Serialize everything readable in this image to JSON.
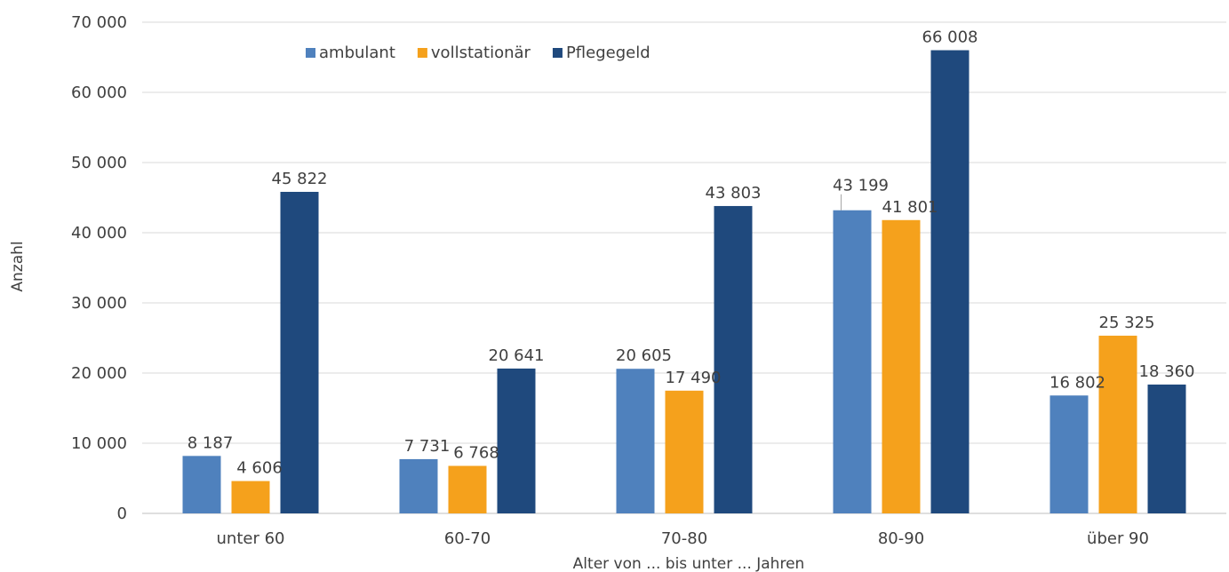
{
  "chart_data": {
    "type": "bar",
    "title": "",
    "xlabel": "Alter von ... bis unter ... Jahren",
    "ylabel": "Anzahl",
    "ylim": [
      0,
      70000
    ],
    "yticks": [
      0,
      10000,
      20000,
      30000,
      40000,
      50000,
      60000,
      70000
    ],
    "ytick_labels": [
      "0",
      "10 000",
      "20 000",
      "30 000",
      "40 000",
      "50 000",
      "60 000",
      "70 000"
    ],
    "categories": [
      "unter 60",
      "60-70",
      "70-80",
      "80-90",
      "über 90"
    ],
    "series": [
      {
        "name": "ambulant",
        "color": "#4f81bd",
        "values": [
          8187,
          7731,
          20605,
          43199,
          16802
        ],
        "labels": [
          "8 187",
          "7 731",
          "20 605",
          "43 199",
          "16 802"
        ]
      },
      {
        "name": "vollstationär",
        "color": "#f5a11c",
        "values": [
          4606,
          6768,
          17490,
          41801,
          25325
        ],
        "labels": [
          "4 606",
          "6 768",
          "17 490",
          "41 801",
          "25 325"
        ]
      },
      {
        "name": "Pflegegeld",
        "color": "#1f497d",
        "values": [
          45822,
          20641,
          43803,
          66008,
          18360
        ],
        "labels": [
          "45 822",
          "20 641",
          "43 803",
          "66 008",
          "18 360"
        ]
      }
    ],
    "grid": true,
    "legend_position": "top-left"
  }
}
